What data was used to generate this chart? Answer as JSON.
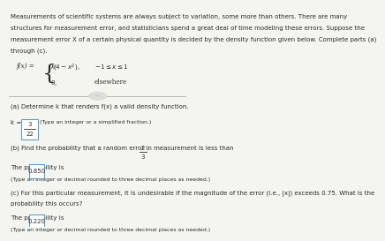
{
  "bg_color": "#f5f5f0",
  "text_color": "#2a2a2a",
  "box_color": "#ffffff",
  "box_border": "#5b9bd5",
  "intro_text": "Measurements of scientific systems are always subject to variation, some more than others. There are many\nstructures for measurement error, and statisticians spend a great deal of time modeling these errors. Suppose the\nmeasurement error X of a certain physical quantity is decided by the density function given below. Complete parts (a)\nthrough (c).",
  "part_a_label": "(a) Determine k that renders f(x) a valid density function.",
  "part_a_answer_prefix": "k = ",
  "part_a_answer": "3/22",
  "part_a_type": "(Type an integer or a simplified fraction.)",
  "part_b_label": "(b) Find the probability that a random error in measurement is less than",
  "part_b_fraction": "2/3",
  "part_b_prob_prefix": "The probability is ",
  "part_b_prob": "0.850",
  "part_b_type": "(Type an integer or decimal rounded to three decimal places as needed.)",
  "part_c_label": "(c) For this particular measurement, it is undesirable if the magnitude of the error (i.e., |x|) exceeds 0.75. What is the\nprobability this occurs?",
  "part_c_prob_prefix": "The probability is ",
  "part_c_prob": "0.220",
  "part_c_type": "(Type an integer or decimal rounded to three decimal places as needed.)"
}
